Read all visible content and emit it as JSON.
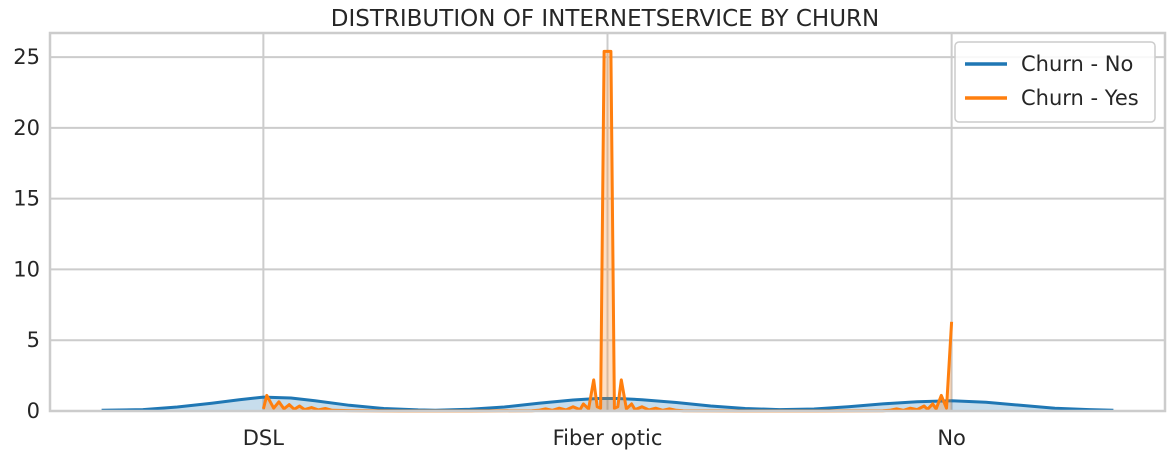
{
  "chart_data": {
    "type": "area",
    "title": "DISTRIBUTION OF INTERNETSERVICE BY CHURN",
    "xlabel": "",
    "ylabel": "",
    "categories": [
      "DSL",
      "Fiber optic",
      "No"
    ],
    "x_positions": [
      0,
      1,
      2
    ],
    "xlim": [
      -0.62,
      2.62
    ],
    "ylim": [
      0,
      26.7
    ],
    "yticks": [
      "0",
      "5",
      "10",
      "15",
      "20",
      "25"
    ],
    "grid": true,
    "legend_position": "top-right",
    "series": [
      {
        "name": "Churn - No",
        "color": "#1f77b4",
        "points": [
          [
            -0.47,
            0.06
          ],
          [
            -0.35,
            0.1
          ],
          [
            -0.25,
            0.28
          ],
          [
            -0.15,
            0.55
          ],
          [
            -0.07,
            0.8
          ],
          [
            0.0,
            0.98
          ],
          [
            0.08,
            0.92
          ],
          [
            0.15,
            0.72
          ],
          [
            0.25,
            0.4
          ],
          [
            0.35,
            0.18
          ],
          [
            0.45,
            0.08
          ],
          [
            0.5,
            0.06
          ],
          [
            0.6,
            0.12
          ],
          [
            0.7,
            0.28
          ],
          [
            0.8,
            0.55
          ],
          [
            0.9,
            0.78
          ],
          [
            0.97,
            0.88
          ],
          [
            1.03,
            0.88
          ],
          [
            1.1,
            0.8
          ],
          [
            1.2,
            0.6
          ],
          [
            1.3,
            0.35
          ],
          [
            1.4,
            0.18
          ],
          [
            1.5,
            0.1
          ],
          [
            1.6,
            0.14
          ],
          [
            1.7,
            0.3
          ],
          [
            1.8,
            0.5
          ],
          [
            1.9,
            0.66
          ],
          [
            2.0,
            0.72
          ],
          [
            2.1,
            0.62
          ],
          [
            2.2,
            0.4
          ],
          [
            2.3,
            0.2
          ],
          [
            2.4,
            0.1
          ],
          [
            2.47,
            0.05
          ]
        ]
      },
      {
        "name": "Churn - Yes",
        "color": "#ff7f0e",
        "points": [
          [
            0.0,
            0.15
          ],
          [
            0.01,
            1.1
          ],
          [
            0.03,
            0.2
          ],
          [
            0.045,
            0.65
          ],
          [
            0.06,
            0.15
          ],
          [
            0.075,
            0.45
          ],
          [
            0.09,
            0.12
          ],
          [
            0.105,
            0.35
          ],
          [
            0.12,
            0.1
          ],
          [
            0.14,
            0.25
          ],
          [
            0.16,
            0.08
          ],
          [
            0.18,
            0.18
          ],
          [
            0.2,
            0.05
          ],
          [
            0.25,
            0.03
          ],
          [
            0.3,
            0.02
          ],
          [
            0.4,
            0.0
          ],
          [
            0.6,
            0.0
          ],
          [
            0.78,
            0.02
          ],
          [
            0.8,
            0.05
          ],
          [
            0.82,
            0.15
          ],
          [
            0.84,
            0.05
          ],
          [
            0.86,
            0.2
          ],
          [
            0.88,
            0.08
          ],
          [
            0.9,
            0.3
          ],
          [
            0.92,
            0.1
          ],
          [
            0.93,
            0.5
          ],
          [
            0.945,
            0.15
          ],
          [
            0.96,
            2.2
          ],
          [
            0.97,
            0.3
          ],
          [
            0.98,
            0.2
          ],
          [
            0.99,
            25.4
          ],
          [
            1.01,
            25.4
          ],
          [
            1.02,
            0.2
          ],
          [
            1.03,
            0.3
          ],
          [
            1.04,
            2.2
          ],
          [
            1.055,
            0.15
          ],
          [
            1.07,
            0.5
          ],
          [
            1.08,
            0.1
          ],
          [
            1.1,
            0.3
          ],
          [
            1.12,
            0.08
          ],
          [
            1.14,
            0.2
          ],
          [
            1.16,
            0.05
          ],
          [
            1.18,
            0.15
          ],
          [
            1.2,
            0.05
          ],
          [
            1.22,
            0.02
          ],
          [
            1.4,
            0.0
          ],
          [
            1.6,
            0.0
          ],
          [
            1.8,
            0.02
          ],
          [
            1.82,
            0.05
          ],
          [
            1.84,
            0.15
          ],
          [
            1.86,
            0.05
          ],
          [
            1.88,
            0.2
          ],
          [
            1.9,
            0.1
          ],
          [
            1.92,
            0.35
          ],
          [
            1.93,
            0.12
          ],
          [
            1.945,
            0.5
          ],
          [
            1.955,
            0.15
          ],
          [
            1.97,
            1.1
          ],
          [
            1.985,
            0.2
          ],
          [
            2.0,
            6.3
          ]
        ]
      }
    ]
  }
}
